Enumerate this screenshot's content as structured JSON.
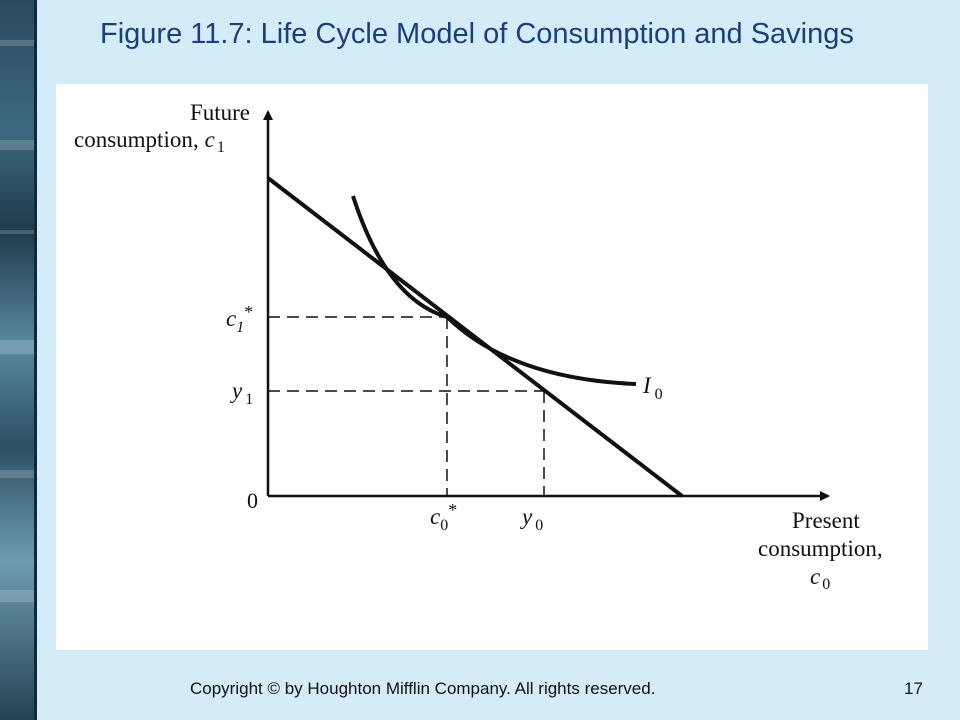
{
  "slide": {
    "title": "Figure 11.7:  Life Cycle Model of Consumption and Savings",
    "copyright": "Copyright © by Houghton Mifflin Company. All rights reserved.",
    "page_number": "17"
  },
  "diagram": {
    "y_axis_label_line1": "Future",
    "y_axis_label_line2": "consumption,",
    "y_axis_symbol": "c",
    "y_axis_symbol_sub": "1",
    "x_axis_label_line1": "Present",
    "x_axis_label_line2": "consumption,",
    "x_axis_symbol": "c",
    "x_axis_symbol_sub": "0",
    "origin_label": "0",
    "c1_star": {
      "base": "c",
      "sub": "1",
      "sup": "*"
    },
    "y1": {
      "base": "y",
      "sub": "1"
    },
    "c0_star": {
      "base": "c",
      "sub": "0",
      "sup": "*"
    },
    "y0": {
      "base": "y",
      "sub": "0"
    },
    "curve_label": {
      "base": "I",
      "sub": "0"
    },
    "colors": {
      "line": "#111111",
      "background": "#ffffff"
    }
  }
}
